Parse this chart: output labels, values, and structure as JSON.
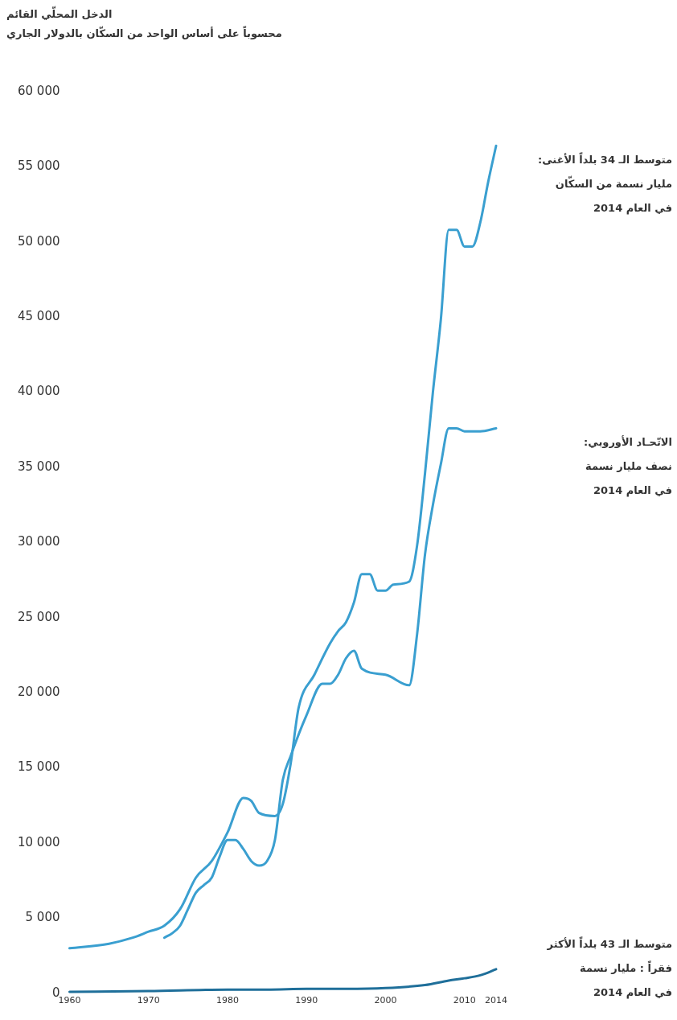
{
  "chart_data": {
    "type": "line",
    "title": "الدخل المحلّي القائم",
    "subtitle": "محسوباً على أساس الواحد من السكّان بالدولار الجاري",
    "xlim": [
      1960,
      2014
    ],
    "xticks": [
      1960,
      1970,
      1980,
      1990,
      2000,
      2010,
      2014
    ],
    "ylim": [
      0,
      60000
    ],
    "yticks": [
      0,
      {
        "value": 5000,
        "label": "5 000"
      },
      {
        "value": 10000,
        "label": "10 000"
      },
      {
        "value": 15000,
        "label": "15 000"
      },
      {
        "value": 20000,
        "label": "20 000"
      },
      {
        "value": 25000,
        "label": "25 000"
      },
      {
        "value": 30000,
        "label": "30 000"
      },
      {
        "value": 35000,
        "label": "35 000"
      },
      {
        "value": 40000,
        "label": "40 000"
      },
      {
        "value": 45000,
        "label": "45 000"
      },
      {
        "value": 50000,
        "label": "50 000"
      },
      {
        "value": 55000,
        "label": "55 000"
      },
      {
        "value": 60000,
        "label": "60 000"
      }
    ],
    "grid": false,
    "legend": false,
    "marker": "none",
    "line_style": "solid",
    "series": [
      {
        "name": "متوسط الـ 34 بلداً الأغنى:\nمليار نسمة من السكّان\nفي العام 2014",
        "color": "#3a9fd0",
        "x": [
          1960,
          1965,
          1968,
          1970,
          1972,
          1974,
          1976,
          1978,
          1980,
          1982,
          1983,
          1984,
          1986,
          1987,
          1988,
          1989,
          1991,
          1993,
          1994,
          1995,
          1996,
          1997,
          1998,
          1999,
          2000,
          2001,
          2003,
          2004,
          2005,
          2006,
          2007,
          2008,
          2009,
          2010,
          2011,
          2012,
          2013,
          2014
        ],
        "values": [
          3000,
          3300,
          3700,
          4100,
          4500,
          5600,
          7700,
          8800,
          10700,
          13000,
          12800,
          12000,
          11800,
          12600,
          15300,
          19000,
          21200,
          23300,
          24100,
          24700,
          26000,
          27900,
          27900,
          26800,
          26800,
          27200,
          27400,
          29800,
          34600,
          40000,
          44800,
          50800,
          50800,
          49700,
          49700,
          51300,
          54000,
          56400
        ]
      },
      {
        "name": "الاتّحـاد الأوروبي:\nنصف مليار نسمة\nفي العام 2014",
        "color": "#3a9fd0",
        "x": [
          1972,
          1973,
          1974,
          1975,
          1976,
          1977,
          1978,
          1979,
          1980,
          1981,
          1982,
          1983,
          1984,
          1985,
          1986,
          1987,
          1988,
          1990,
          1992,
          1993,
          1994,
          1995,
          1996,
          1997,
          2000,
          2003,
          2004,
          2005,
          2006,
          2007,
          2008,
          2009,
          2010,
          2012,
          2014
        ],
        "values": [
          3700,
          4000,
          4500,
          5600,
          6700,
          7200,
          7700,
          9100,
          10200,
          10200,
          9600,
          8800,
          8500,
          8800,
          10200,
          14200,
          15800,
          18500,
          20600,
          20600,
          21200,
          22300,
          22800,
          21600,
          21200,
          20500,
          23900,
          29200,
          32500,
          35200,
          37600,
          37600,
          37400,
          37400,
          37600
        ]
      },
      {
        "name": "متوسط الـ 43 بلداً الأكثر\nفقراً : مليار نسمة\nفي العام 2014",
        "color": "#1f6f9a",
        "x": [
          1960,
          1970,
          1980,
          1985,
          1990,
          1995,
          2000,
          2005,
          2008,
          2010,
          2012,
          2014
        ],
        "values": [
          100,
          150,
          250,
          250,
          300,
          300,
          350,
          550,
          850,
          1000,
          1200,
          1600
        ]
      }
    ]
  }
}
